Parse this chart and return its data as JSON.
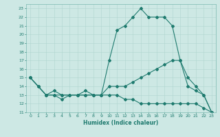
{
  "xlabel": "Humidex (Indice chaleur)",
  "bg_color": "#cde8e4",
  "grid_color": "#b0d5cf",
  "line_color": "#1e7a6e",
  "spine_color": "#7ab8b0",
  "xlim": [
    -0.5,
    23.5
  ],
  "ylim": [
    11,
    23.5
  ],
  "xticks": [
    0,
    1,
    2,
    3,
    4,
    5,
    6,
    7,
    8,
    9,
    10,
    11,
    12,
    13,
    14,
    15,
    16,
    17,
    18,
    19,
    20,
    21,
    22,
    23
  ],
  "yticks": [
    11,
    12,
    13,
    14,
    15,
    16,
    17,
    18,
    19,
    20,
    21,
    22,
    23
  ],
  "line1_x": [
    0,
    1,
    2,
    3,
    4,
    5,
    6,
    7,
    8,
    9,
    10,
    11,
    12,
    13,
    14,
    15,
    16,
    17,
    18,
    19,
    20,
    21,
    22,
    23
  ],
  "line1_y": [
    15,
    14,
    13,
    13,
    12.5,
    13,
    13,
    13.5,
    13,
    13,
    17,
    20.5,
    21,
    22,
    23,
    22,
    22,
    22,
    21,
    17,
    14,
    13.5,
    13,
    11
  ],
  "line2_x": [
    0,
    1,
    2,
    3,
    4,
    5,
    6,
    7,
    8,
    9,
    10,
    11,
    12,
    13,
    14,
    15,
    16,
    17,
    18,
    19,
    20,
    21,
    22,
    23
  ],
  "line2_y": [
    15,
    14,
    13,
    13.5,
    13,
    13,
    13,
    13,
    13,
    13,
    14,
    14,
    14,
    14.5,
    15,
    15.5,
    16,
    16.5,
    17,
    17,
    15,
    14,
    13,
    11
  ],
  "line3_x": [
    0,
    1,
    2,
    3,
    4,
    5,
    6,
    7,
    8,
    9,
    10,
    11,
    12,
    13,
    14,
    15,
    16,
    17,
    18,
    19,
    20,
    21,
    22,
    23
  ],
  "line3_y": [
    15,
    14,
    13,
    13,
    13,
    13,
    13,
    13,
    13,
    13,
    13,
    13,
    12.5,
    12.5,
    12,
    12,
    12,
    12,
    12,
    12,
    12,
    12,
    11.5,
    11
  ],
  "marker_size": 2.0,
  "line_width": 0.8,
  "xlabel_fontsize": 5.5,
  "tick_fontsize": 4.5
}
